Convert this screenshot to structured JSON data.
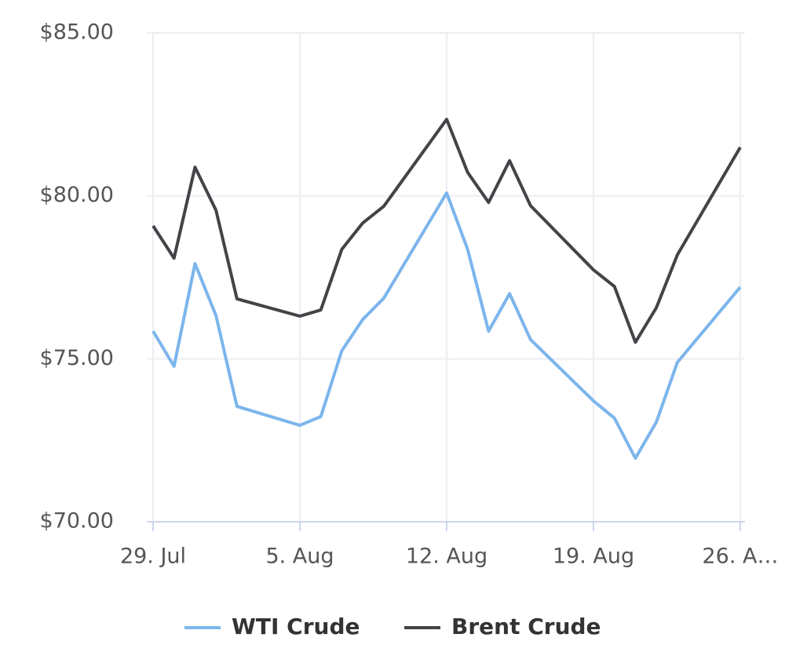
{
  "chart_data": {
    "type": "line",
    "x": [
      0,
      1,
      2,
      3,
      4,
      7,
      8,
      9,
      10,
      11,
      14,
      15,
      16,
      17,
      18,
      21,
      22,
      23,
      24,
      25,
      28
    ],
    "xlim": [
      0,
      28
    ],
    "xticks": [
      {
        "value": 0,
        "label": "29. Jul"
      },
      {
        "value": 7,
        "label": "5. Aug"
      },
      {
        "value": 14,
        "label": "12. Aug"
      },
      {
        "value": 21,
        "label": "19. Aug"
      },
      {
        "value": 28,
        "label": "26. A…"
      }
    ],
    "ylim": [
      70,
      85
    ],
    "yticks": [
      {
        "value": 70,
        "label": "$70.00"
      },
      {
        "value": 75,
        "label": "$75.00"
      },
      {
        "value": 80,
        "label": "$80.00"
      },
      {
        "value": 85,
        "label": "$85.00"
      }
    ],
    "grid": true,
    "legend": "bottom",
    "series": [
      {
        "name": "WTI Crude",
        "color": "#7cb5ec",
        "values": [
          75.85,
          74.77,
          77.92,
          76.33,
          73.54,
          72.96,
          73.23,
          75.25,
          76.21,
          76.86,
          80.09,
          78.36,
          75.85,
          77.0,
          75.59,
          73.71,
          73.18,
          71.95,
          73.06,
          74.89,
          77.2
        ]
      },
      {
        "name": "Brent Crude",
        "color": "#434348",
        "values": [
          79.08,
          78.09,
          80.88,
          79.56,
          76.84,
          76.31,
          76.5,
          78.36,
          79.17,
          79.68,
          82.35,
          80.72,
          79.8,
          81.08,
          79.7,
          77.73,
          77.22,
          75.51,
          76.57,
          78.19,
          81.49
        ]
      }
    ]
  }
}
